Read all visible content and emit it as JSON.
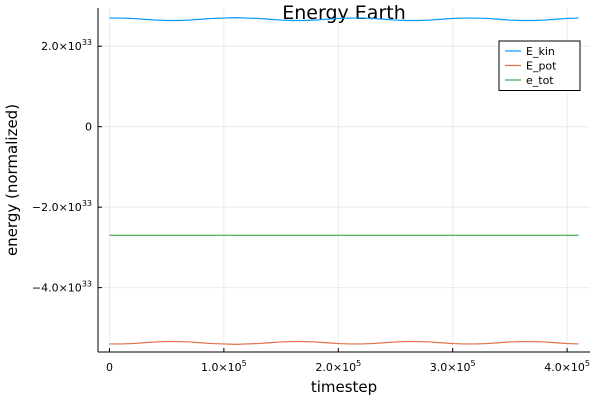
{
  "chart_data": {
    "type": "line",
    "title": "Energy Earth",
    "xlabel": "timestep",
    "ylabel": "energy (normalized)",
    "xlim": [
      -10000,
      420000
    ],
    "ylim": [
      -5.6e+33,
      2.95e+33
    ],
    "grid": true,
    "legend_position": "top-right",
    "x_ticks": [
      {
        "value": 0,
        "mantissa": "0",
        "exponent": ""
      },
      {
        "value": 100000,
        "mantissa": "1.0×10",
        "exponent": "5"
      },
      {
        "value": 200000,
        "mantissa": "2.0×10",
        "exponent": "5"
      },
      {
        "value": 300000,
        "mantissa": "3.0×10",
        "exponent": "5"
      },
      {
        "value": 400000,
        "mantissa": "4.0×10",
        "exponent": "5"
      }
    ],
    "y_ticks": [
      {
        "value": 2e+33,
        "mantissa": "2.0×10",
        "exponent": "33"
      },
      {
        "value": 0,
        "mantissa": "0",
        "exponent": ""
      },
      {
        "value": -2e+33,
        "mantissa": "−2.0×10",
        "exponent": "33"
      },
      {
        "value": -4e+33,
        "mantissa": "−4.0×10",
        "exponent": "33"
      }
    ],
    "x": [
      0,
      10000,
      20000,
      30000,
      40000,
      50000,
      60000,
      70000,
      80000,
      90000,
      100000,
      110000,
      120000,
      130000,
      140000,
      150000,
      160000,
      170000,
      180000,
      190000,
      200000,
      210000,
      220000,
      230000,
      240000,
      250000,
      260000,
      270000,
      280000,
      290000,
      300000,
      310000,
      320000,
      330000,
      340000,
      350000,
      360000,
      370000,
      380000,
      390000,
      400000,
      410000
    ],
    "series": [
      {
        "name": "E_kin",
        "color": "#009AFA",
        "values": [
          2.7e+33,
          2.7e+33,
          2.69e+33,
          2.67e+33,
          2.65e+33,
          2.64e+33,
          2.64e+33,
          2.65e+33,
          2.67e+33,
          2.69e+33,
          2.7e+33,
          2.71e+33,
          2.7e+33,
          2.69e+33,
          2.67e+33,
          2.65e+33,
          2.64e+33,
          2.64e+33,
          2.65e+33,
          2.67e+33,
          2.69e+33,
          2.7e+33,
          2.7e+33,
          2.69e+33,
          2.67e+33,
          2.65e+33,
          2.64e+33,
          2.64e+33,
          2.65e+33,
          2.67e+33,
          2.69e+33,
          2.7e+33,
          2.7e+33,
          2.69e+33,
          2.67e+33,
          2.65e+33,
          2.64e+33,
          2.64e+33,
          2.65e+33,
          2.67e+33,
          2.69e+33,
          2.7e+33
        ]
      },
      {
        "name": "E_pot",
        "color": "#E26F46",
        "values": [
          -5.4e+33,
          -5.4e+33,
          -5.39e+33,
          -5.37e+33,
          -5.35e+33,
          -5.34e+33,
          -5.34e+33,
          -5.35e+33,
          -5.37e+33,
          -5.39e+33,
          -5.4e+33,
          -5.41e+33,
          -5.4e+33,
          -5.39e+33,
          -5.37e+33,
          -5.35e+33,
          -5.34e+33,
          -5.34e+33,
          -5.35e+33,
          -5.37e+33,
          -5.39e+33,
          -5.4e+33,
          -5.4e+33,
          -5.39e+33,
          -5.37e+33,
          -5.35e+33,
          -5.34e+33,
          -5.34e+33,
          -5.35e+33,
          -5.37e+33,
          -5.39e+33,
          -5.4e+33,
          -5.4e+33,
          -5.39e+33,
          -5.37e+33,
          -5.35e+33,
          -5.34e+33,
          -5.34e+33,
          -5.35e+33,
          -5.37e+33,
          -5.39e+33,
          -5.4e+33
        ]
      },
      {
        "name": "e_tot",
        "color": "#3DA44D",
        "values": [
          -2.7e+33,
          -2.7e+33,
          -2.7e+33,
          -2.7e+33,
          -2.7e+33,
          -2.7e+33,
          -2.7e+33,
          -2.7e+33,
          -2.7e+33,
          -2.7e+33,
          -2.7e+33,
          -2.7e+33,
          -2.7e+33,
          -2.7e+33,
          -2.7e+33,
          -2.7e+33,
          -2.7e+33,
          -2.7e+33,
          -2.7e+33,
          -2.7e+33,
          -2.7e+33,
          -2.7e+33,
          -2.7e+33,
          -2.7e+33,
          -2.7e+33,
          -2.7e+33,
          -2.7e+33,
          -2.7e+33,
          -2.7e+33,
          -2.7e+33,
          -2.7e+33,
          -2.7e+33,
          -2.7e+33,
          -2.7e+33,
          -2.7e+33,
          -2.7e+33,
          -2.7e+33,
          -2.7e+33,
          -2.7e+33,
          -2.7e+33,
          -2.7e+33,
          -2.7e+33
        ]
      }
    ]
  }
}
